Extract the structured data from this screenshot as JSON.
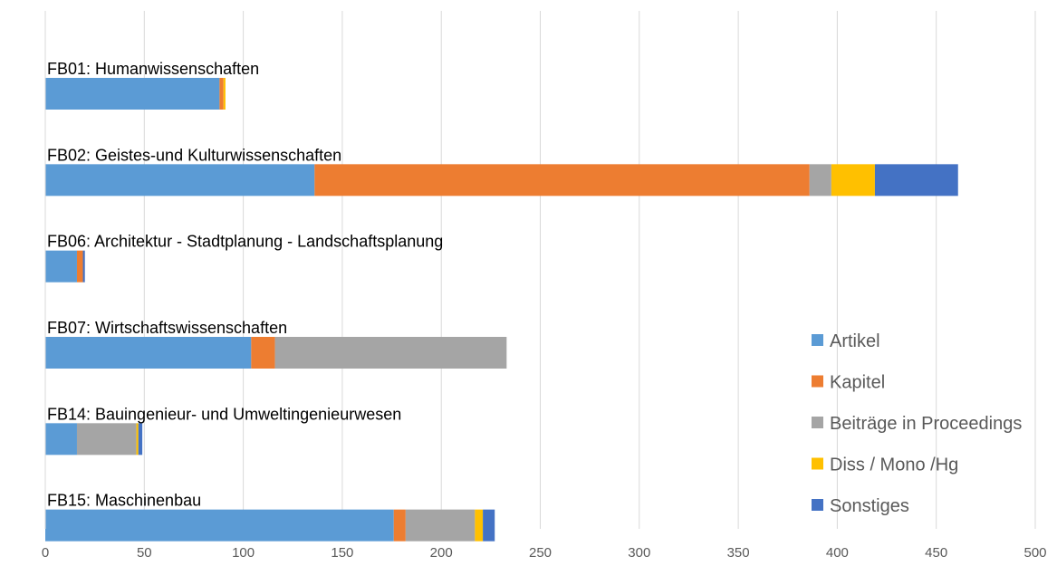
{
  "chart_data": {
    "type": "bar",
    "orientation": "horizontal",
    "stacked": true,
    "categories": [
      "FB01: Humanwissenschaften",
      "FB02: Geistes-und Kulturwissenschaften",
      "FB06: Architektur - Stadtplanung - Landschaftsplanung",
      "FB07: Wirtschaftswissenschaften",
      "FB14: Bauingenieur- und Umweltingenieurwesen",
      "FB15: Maschinenbau"
    ],
    "series": [
      {
        "name": "Artikel",
        "color": "#5b9bd5",
        "values": [
          88,
          136,
          16,
          104,
          16,
          176
        ]
      },
      {
        "name": "Kapitel",
        "color": "#ed7d31",
        "values": [
          2,
          250,
          3,
          12,
          0,
          6
        ]
      },
      {
        "name": "Beiträge in Proceedings",
        "color": "#a5a5a5",
        "values": [
          0,
          11,
          0,
          117,
          30,
          35
        ]
      },
      {
        "name": "Diss / Mono /Hg",
        "color": "#ffc000",
        "values": [
          1,
          22,
          0,
          0,
          1,
          4
        ]
      },
      {
        "name": "Sonstiges",
        "color": "#4472c4",
        "values": [
          0,
          42,
          1,
          0,
          2,
          6
        ]
      }
    ],
    "xlim": [
      0,
      500
    ],
    "x_ticks": [
      0,
      50,
      100,
      150,
      200,
      250,
      300,
      350,
      400,
      450,
      500
    ],
    "grid": true,
    "legend_position": "right"
  }
}
